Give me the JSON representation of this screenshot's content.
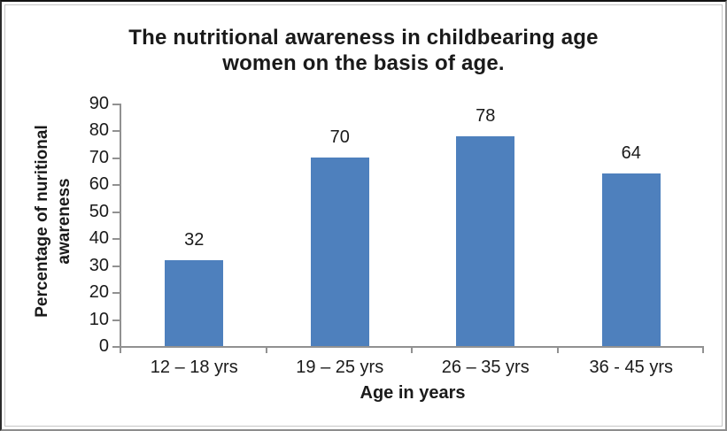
{
  "chart_data": {
    "type": "bar",
    "title": "The nutritional awareness in childbearing age women on the basis of age.",
    "title_lines": [
      "The nutritional awareness in childbearing age",
      "women on the basis of age."
    ],
    "categories": [
      "12 – 18 yrs",
      "19 – 25 yrs",
      "26 – 35 yrs",
      "36 - 45 yrs"
    ],
    "values": [
      32,
      70,
      78,
      64
    ],
    "xlabel": "Age in years",
    "ylabel": "Percentage of nuritional awareness",
    "ylabel_lines": [
      "Percentage of nuritional",
      "awareness"
    ],
    "ylim": [
      0,
      90
    ],
    "ytick_step": 10,
    "yticks": [
      0,
      10,
      20,
      30,
      40,
      50,
      60,
      70,
      80,
      90
    ],
    "grid": false,
    "legend": false,
    "data_labels_shown": true,
    "colors": {
      "bar": "#4E80BD",
      "axis": "#919191",
      "text": "#1A1A1A",
      "background": "#FFFFFF"
    }
  }
}
